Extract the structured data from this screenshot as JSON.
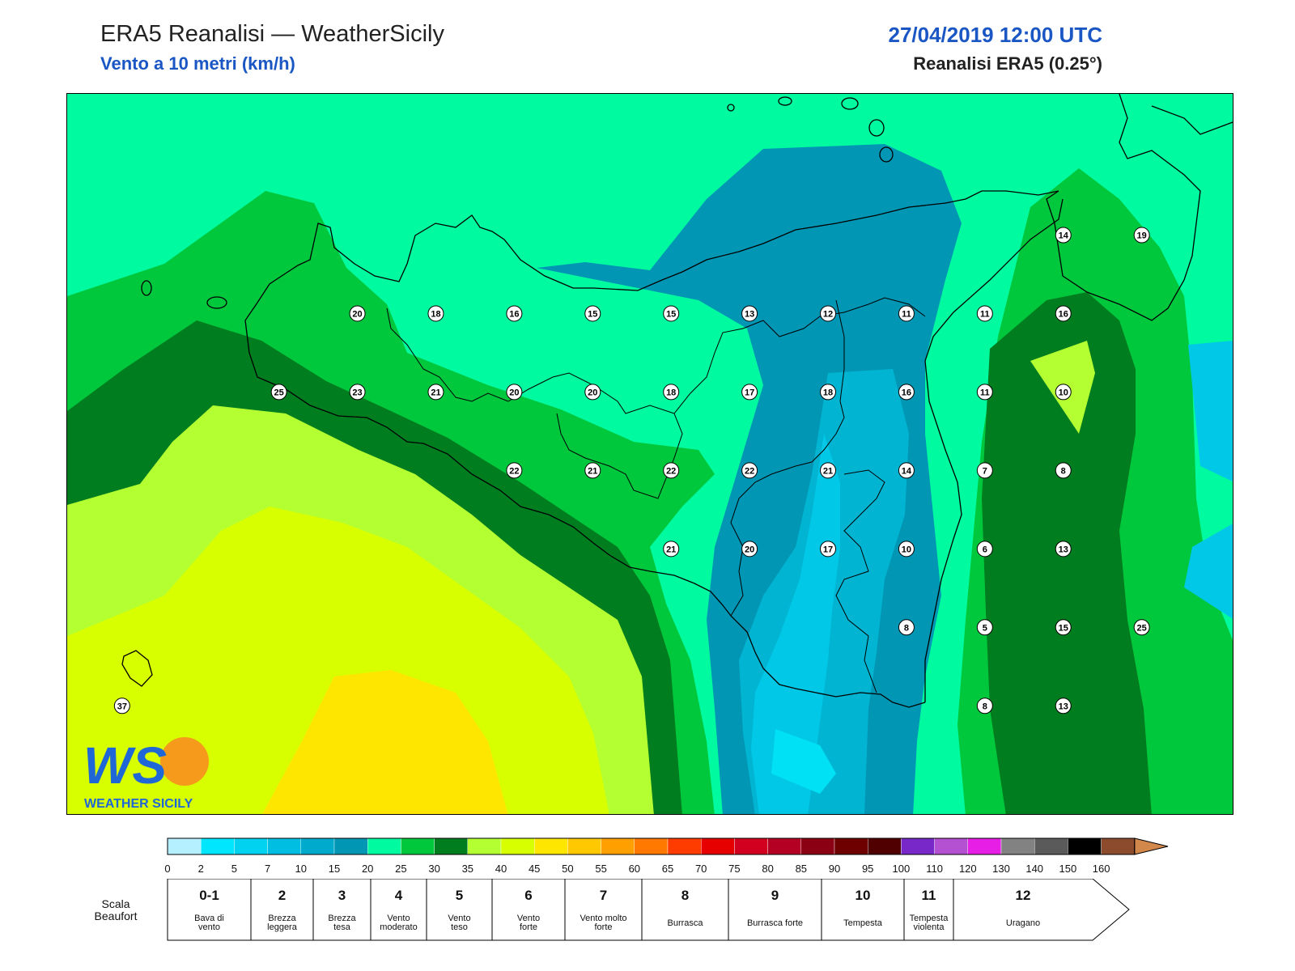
{
  "header": {
    "title": "ERA5 Reanalisi — WeatherSicily",
    "subtitle": "Vento a 10 metri (km/h)",
    "datetime": "27/04/2019 12:00 UTC",
    "source": "Reanalisi ERA5 (0.25°)"
  },
  "colors": {
    "accent": "#1a56c4",
    "wind_0_2": "#aaf0ff",
    "wind_5_7": "#00c8e6",
    "wind_7_10": "#00b4d2",
    "wind_10_15": "#0096b4",
    "wind_15_20": "#00faa0",
    "wind_20_25": "#00c83c",
    "wind_25_30": "#007d1e",
    "wind_30_35": "#b4ff32",
    "wind_35_40": "#d7ff00",
    "wind_40_45": "#ffe600"
  },
  "stations": [
    {
      "value": "20",
      "lon": 12.85,
      "lat": 38.2
    },
    {
      "value": "18",
      "lon": 13.35,
      "lat": 38.2
    },
    {
      "value": "16",
      "lon": 13.85,
      "lat": 38.2
    },
    {
      "value": "15",
      "lon": 14.35,
      "lat": 38.2
    },
    {
      "value": "15",
      "lon": 14.85,
      "lat": 38.2
    },
    {
      "value": "13",
      "lon": 15.35,
      "lat": 38.2
    },
    {
      "value": "12",
      "lon": 15.85,
      "lat": 38.2
    },
    {
      "value": "11",
      "lon": 16.35,
      "lat": 38.2
    },
    {
      "value": "11",
      "lon": 16.85,
      "lat": 38.2
    },
    {
      "value": "16",
      "lon": 17.35,
      "lat": 38.2
    },
    {
      "value": "14",
      "lon": 17.35,
      "lat": 38.7
    },
    {
      "value": "19",
      "lon": 17.85,
      "lat": 38.7
    },
    {
      "value": "25",
      "lon": 12.35,
      "lat": 37.7
    },
    {
      "value": "23",
      "lon": 12.85,
      "lat": 37.7
    },
    {
      "value": "21",
      "lon": 13.35,
      "lat": 37.7
    },
    {
      "value": "20",
      "lon": 13.85,
      "lat": 37.7
    },
    {
      "value": "20",
      "lon": 14.35,
      "lat": 37.7
    },
    {
      "value": "18",
      "lon": 14.85,
      "lat": 37.7
    },
    {
      "value": "17",
      "lon": 15.35,
      "lat": 37.7
    },
    {
      "value": "18",
      "lon": 15.85,
      "lat": 37.7
    },
    {
      "value": "16",
      "lon": 16.35,
      "lat": 37.7
    },
    {
      "value": "11",
      "lon": 16.85,
      "lat": 37.7
    },
    {
      "value": "10",
      "lon": 17.35,
      "lat": 37.7
    },
    {
      "value": "22",
      "lon": 13.85,
      "lat": 37.2
    },
    {
      "value": "21",
      "lon": 14.35,
      "lat": 37.2
    },
    {
      "value": "22",
      "lon": 14.85,
      "lat": 37.2
    },
    {
      "value": "22",
      "lon": 15.35,
      "lat": 37.2
    },
    {
      "value": "21",
      "lon": 15.85,
      "lat": 37.2
    },
    {
      "value": "14",
      "lon": 16.35,
      "lat": 37.2
    },
    {
      "value": "7",
      "lon": 16.85,
      "lat": 37.2
    },
    {
      "value": "8",
      "lon": 17.35,
      "lat": 37.2
    },
    {
      "value": "21",
      "lon": 14.85,
      "lat": 36.7
    },
    {
      "value": "20",
      "lon": 15.35,
      "lat": 36.7
    },
    {
      "value": "17",
      "lon": 15.85,
      "lat": 36.7
    },
    {
      "value": "10",
      "lon": 16.35,
      "lat": 36.7
    },
    {
      "value": "6",
      "lon": 16.85,
      "lat": 36.7
    },
    {
      "value": "13",
      "lon": 17.35,
      "lat": 36.7
    },
    {
      "value": "8",
      "lon": 16.35,
      "lat": 36.2
    },
    {
      "value": "5",
      "lon": 16.85,
      "lat": 36.2
    },
    {
      "value": "15",
      "lon": 17.35,
      "lat": 36.2
    },
    {
      "value": "25",
      "lon": 17.85,
      "lat": 36.2
    },
    {
      "value": "8",
      "lon": 16.85,
      "lat": 35.7
    },
    {
      "value": "13",
      "lon": 17.35,
      "lat": 35.7
    },
    {
      "value": "37",
      "lon": 11.35,
      "lat": 35.7
    }
  ],
  "legend": {
    "thresholds": [
      "0",
      "2",
      "5",
      "7",
      "10",
      "15",
      "20",
      "25",
      "30",
      "35",
      "40",
      "45",
      "50",
      "55",
      "60",
      "65",
      "70",
      "75",
      "80",
      "85",
      "90",
      "95",
      "100",
      "110",
      "120",
      "130",
      "140",
      "150",
      "160"
    ],
    "colors": [
      "#b4f0ff",
      "#00e6ff",
      "#00d2f0",
      "#00bee1",
      "#00aacd",
      "#0096b4",
      "#00faa0",
      "#00c83c",
      "#007d1e",
      "#b4ff32",
      "#d7ff00",
      "#ffe600",
      "#ffc800",
      "#ffa000",
      "#ff7800",
      "#ff3c00",
      "#e60000",
      "#d2001e",
      "#b40023",
      "#8c0014",
      "#6e0000",
      "#500000",
      "#7828c8",
      "#b450d2",
      "#e61ee6",
      "#828282",
      "#5a5a5a",
      "#000000",
      "#8c4b2d",
      "#d2874b"
    ]
  },
  "beaufort": {
    "label": "Scala Beaufort",
    "scale": [
      {
        "num": "0-1",
        "desc": "Bava di vento"
      },
      {
        "num": "2",
        "desc": "Brezza leggera"
      },
      {
        "num": "3",
        "desc": "Brezza tesa"
      },
      {
        "num": "4",
        "desc": "Vento moderato"
      },
      {
        "num": "5",
        "desc": "Vento teso"
      },
      {
        "num": "6",
        "desc": "Vento forte"
      },
      {
        "num": "7",
        "desc": "Vento molto forte"
      },
      {
        "num": "8",
        "desc": "Burrasca"
      },
      {
        "num": "9",
        "desc": "Burrasca forte"
      },
      {
        "num": "10",
        "desc": "Tempesta"
      },
      {
        "num": "11",
        "desc": "Tempesta violenta"
      },
      {
        "num": "12",
        "desc": "Uragano"
      }
    ]
  },
  "logo": {
    "letters": "WS",
    "caption": "WEATHER SICILY"
  }
}
